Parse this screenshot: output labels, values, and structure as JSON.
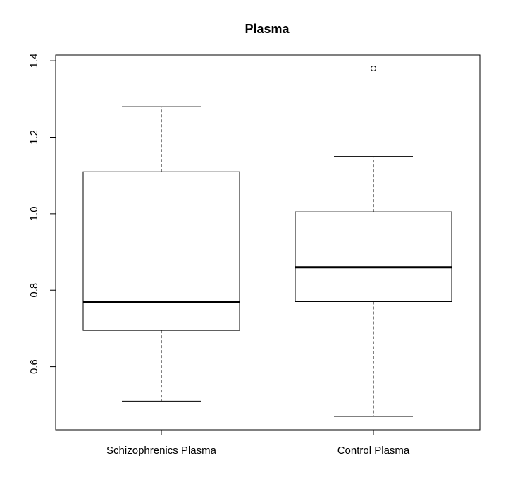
{
  "chart_data": {
    "type": "boxplot",
    "title": "Plasma",
    "xlabel": "",
    "ylabel": "",
    "ylim": [
      0.435,
      1.415
    ],
    "yticks": [
      "0.6",
      "0.8",
      "1.0",
      "1.2",
      "1.4"
    ],
    "ytick_values": [
      0.6,
      0.8,
      1.0,
      1.2,
      1.4
    ],
    "categories": [
      "Schizophrenics Plasma",
      "Control Plasma"
    ],
    "series": [
      {
        "category": "Schizophrenics Plasma",
        "whisker_low": 0.51,
        "q1": 0.695,
        "median": 0.77,
        "q3": 1.11,
        "whisker_high": 1.28,
        "outliers": []
      },
      {
        "category": "Control Plasma",
        "whisker_low": 0.47,
        "q1": 0.77,
        "median": 0.86,
        "q3": 1.005,
        "whisker_high": 1.15,
        "outliers": [
          1.38
        ]
      }
    ],
    "grid": false,
    "legend": "none",
    "colors": {
      "stroke": "#000000",
      "background": "#ffffff"
    }
  }
}
